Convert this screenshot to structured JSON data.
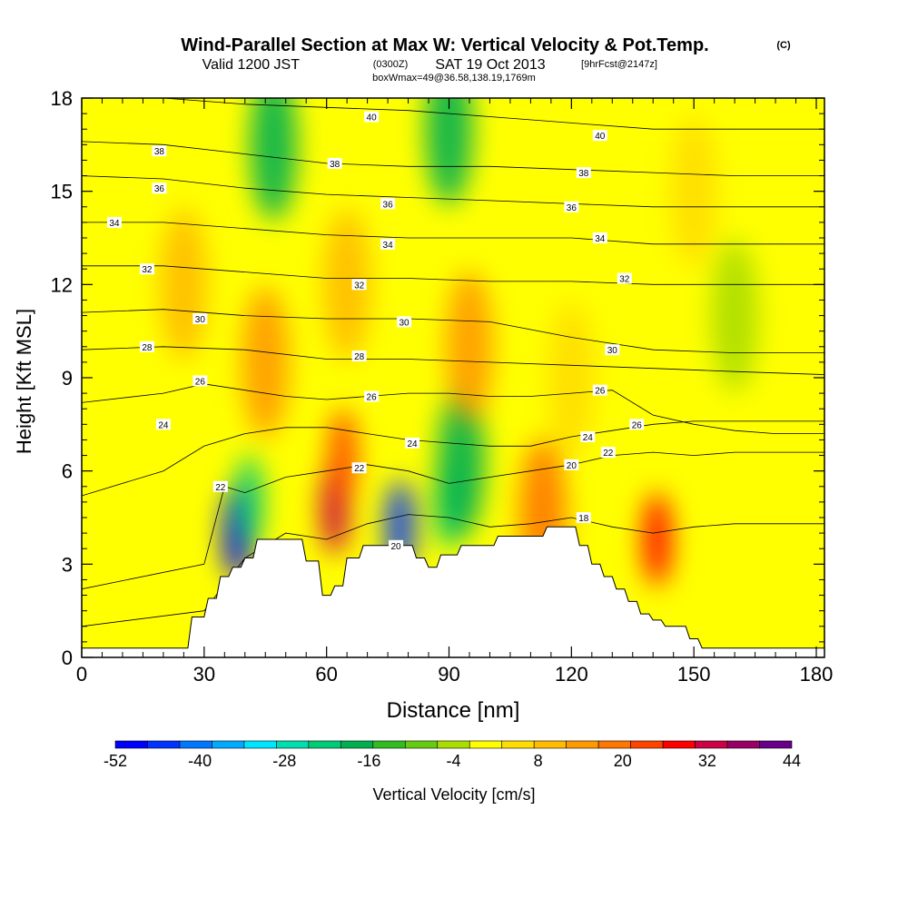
{
  "header": {
    "title": "Wind-Parallel Section at Max W: Vertical Velocity & Pot.Temp.",
    "copyright": "(C)",
    "valid_prefix": "Valid 1200 JST",
    "valid_utc": "(0300Z)",
    "valid_date": "SAT 19 Oct 2013",
    "forecast": "[9hrFcst@2147z]",
    "box_info": "boxWmax=49@36.58,138.19,1769m"
  },
  "chart_data": {
    "type": "heatmap",
    "xlabel": "Distance [nm]",
    "ylabel": "Height [Kft MSL]",
    "xlim": [
      0,
      182
    ],
    "ylim": [
      0,
      18
    ],
    "x_ticks": [
      "0",
      "30",
      "60",
      "90",
      "120",
      "150",
      "180"
    ],
    "y_ticks": [
      "0",
      "3",
      "6",
      "9",
      "12",
      "15",
      "18"
    ],
    "terrain": {
      "x": [
        0,
        26,
        27,
        30,
        31,
        33,
        34,
        36,
        37,
        39,
        40,
        42,
        43,
        54,
        55,
        58,
        59,
        61,
        62,
        64,
        65,
        68,
        69,
        81,
        82,
        84,
        85,
        87,
        88,
        92,
        93,
        101,
        102,
        113,
        114,
        121,
        122,
        124,
        125,
        127,
        128,
        130,
        131,
        133,
        134,
        136,
        137,
        139,
        140,
        142,
        143,
        148,
        149,
        151,
        152,
        182
      ],
      "height_kft": [
        0.3,
        0.3,
        1.3,
        1.3,
        1.9,
        1.9,
        2.6,
        2.6,
        2.9,
        2.9,
        3.2,
        3.2,
        3.8,
        3.8,
        3.1,
        3.1,
        2.0,
        2.0,
        2.3,
        2.3,
        3.2,
        3.2,
        3.6,
        3.6,
        3.2,
        3.2,
        2.9,
        2.9,
        3.3,
        3.3,
        3.6,
        3.6,
        3.9,
        3.9,
        4.2,
        4.2,
        3.6,
        3.6,
        3.0,
        3.0,
        2.6,
        2.6,
        2.2,
        2.2,
        1.8,
        1.8,
        1.4,
        1.4,
        1.2,
        1.2,
        1.0,
        1.0,
        0.6,
        0.6,
        0.3,
        0.3
      ]
    },
    "colorbar": {
      "label": "Vertical Velocity [cm/s]",
      "tick_labels": [
        "-52",
        "-40",
        "-28",
        "-16",
        "-4",
        "8",
        "20",
        "32",
        "44"
      ],
      "range": [
        -52,
        44
      ],
      "colors": [
        "#0000ff",
        "#0033ff",
        "#0077ff",
        "#00aaff",
        "#00e5ff",
        "#00ddb0",
        "#00cc77",
        "#00b050",
        "#33bb22",
        "#66cc11",
        "#aadd00",
        "#ffff00",
        "#ffdd00",
        "#ffbb00",
        "#ff9900",
        "#ff7700",
        "#ff4400",
        "#ff0000",
        "#cc0044",
        "#990066",
        "#660088"
      ]
    },
    "isentropes": [
      {
        "level": 20,
        "x": [
          0,
          30,
          40,
          50,
          60,
          70,
          80,
          90,
          100,
          110,
          120,
          130,
          140,
          150,
          160,
          170,
          182
        ],
        "height_kft": [
          1.0,
          1.5,
          3.2,
          4.0,
          3.8,
          4.3,
          4.6,
          4.5,
          4.2,
          4.3,
          4.5,
          4.2,
          4.0,
          4.2,
          4.3,
          4.3,
          4.3
        ]
      },
      {
        "level": 22,
        "x": [
          0,
          30,
          35,
          40,
          50,
          60,
          70,
          80,
          90,
          100,
          110,
          120,
          130,
          140,
          150,
          160,
          170,
          182
        ],
        "height_kft": [
          2.2,
          3.0,
          5.5,
          5.3,
          5.8,
          6.0,
          6.2,
          6.0,
          5.6,
          5.8,
          6.0,
          6.2,
          6.5,
          6.6,
          6.5,
          6.6,
          6.6,
          6.6
        ]
      },
      {
        "level": 24,
        "x": [
          0,
          20,
          30,
          40,
          50,
          60,
          70,
          80,
          90,
          100,
          110,
          120,
          130,
          140,
          150,
          160,
          170,
          182
        ],
        "height_kft": [
          5.2,
          6.0,
          6.8,
          7.2,
          7.4,
          7.4,
          7.2,
          7.0,
          6.9,
          6.8,
          6.8,
          7.1,
          7.3,
          7.5,
          7.6,
          7.6,
          7.6,
          7.6
        ]
      },
      {
        "level": 26,
        "x": [
          0,
          20,
          30,
          40,
          50,
          60,
          70,
          80,
          90,
          100,
          110,
          120,
          130,
          140,
          150,
          160,
          170,
          182
        ],
        "height_kft": [
          8.2,
          8.5,
          8.8,
          8.6,
          8.4,
          8.3,
          8.4,
          8.5,
          8.5,
          8.4,
          8.4,
          8.5,
          8.6,
          7.8,
          7.5,
          7.3,
          7.2,
          7.2
        ]
      },
      {
        "level": 28,
        "x": [
          0,
          20,
          40,
          60,
          80,
          100,
          120,
          140,
          160,
          182
        ],
        "height_kft": [
          9.9,
          10.0,
          9.9,
          9.6,
          9.6,
          9.5,
          9.4,
          9.3,
          9.2,
          9.1
        ]
      },
      {
        "level": 30,
        "x": [
          0,
          20,
          40,
          60,
          80,
          100,
          120,
          140,
          160,
          182
        ],
        "height_kft": [
          11.1,
          11.2,
          11.0,
          10.9,
          10.9,
          10.8,
          10.3,
          9.9,
          9.8,
          9.8
        ]
      },
      {
        "level": 32,
        "x": [
          0,
          20,
          40,
          60,
          80,
          100,
          120,
          140,
          160,
          182
        ],
        "height_kft": [
          12.6,
          12.6,
          12.4,
          12.2,
          12.2,
          12.1,
          12.1,
          12.0,
          12.0,
          12.0
        ]
      },
      {
        "level": 34,
        "x": [
          0,
          20,
          40,
          60,
          80,
          100,
          120,
          140,
          160,
          182
        ],
        "height_kft": [
          14.0,
          14.0,
          13.8,
          13.6,
          13.5,
          13.5,
          13.5,
          13.3,
          13.3,
          13.3
        ]
      },
      {
        "level": 36,
        "x": [
          0,
          20,
          40,
          60,
          80,
          100,
          120,
          140,
          160,
          182
        ],
        "height_kft": [
          15.5,
          15.4,
          15.1,
          14.9,
          14.8,
          14.7,
          14.6,
          14.5,
          14.5,
          14.5
        ]
      },
      {
        "level": 38,
        "x": [
          0,
          20,
          40,
          60,
          80,
          100,
          120,
          140,
          160,
          182
        ],
        "height_kft": [
          16.6,
          16.5,
          16.2,
          15.9,
          15.8,
          15.8,
          15.7,
          15.6,
          15.5,
          15.5
        ]
      },
      {
        "level": 40,
        "x": [
          0,
          20,
          40,
          60,
          80,
          100,
          120,
          140,
          160,
          182
        ],
        "height_kft": [
          18.2,
          18.0,
          17.8,
          17.7,
          17.6,
          17.4,
          17.2,
          17.0,
          17.0,
          17.0
        ]
      }
    ],
    "contour_labels": [
      {
        "text": "40",
        "x": 71,
        "y": 17.4
      },
      {
        "text": "40",
        "x": 127,
        "y": 16.8
      },
      {
        "text": "38",
        "x": 19,
        "y": 16.3
      },
      {
        "text": "38",
        "x": 62,
        "y": 15.9
      },
      {
        "text": "38",
        "x": 123,
        "y": 15.6
      },
      {
        "text": "36",
        "x": 19,
        "y": 15.1
      },
      {
        "text": "36",
        "x": 75,
        "y": 14.6
      },
      {
        "text": "36",
        "x": 120,
        "y": 14.5
      },
      {
        "text": "34",
        "x": 8,
        "y": 14.0
      },
      {
        "text": "34",
        "x": 75,
        "y": 13.3
      },
      {
        "text": "34",
        "x": 127,
        "y": 13.5
      },
      {
        "text": "32",
        "x": 16,
        "y": 12.5
      },
      {
        "text": "32",
        "x": 68,
        "y": 12.0
      },
      {
        "text": "32",
        "x": 133,
        "y": 12.2
      },
      {
        "text": "30",
        "x": 29,
        "y": 10.9
      },
      {
        "text": "30",
        "x": 79,
        "y": 10.8
      },
      {
        "text": "30",
        "x": 130,
        "y": 9.9
      },
      {
        "text": "28",
        "x": 16,
        "y": 10.0
      },
      {
        "text": "28",
        "x": 68,
        "y": 9.7
      },
      {
        "text": "26",
        "x": 29,
        "y": 8.9
      },
      {
        "text": "26",
        "x": 71,
        "y": 8.4
      },
      {
        "text": "26",
        "x": 127,
        "y": 8.6
      },
      {
        "text": "26",
        "x": 136,
        "y": 7.5
      },
      {
        "text": "24",
        "x": 20,
        "y": 7.5
      },
      {
        "text": "24",
        "x": 81,
        "y": 6.9
      },
      {
        "text": "24",
        "x": 124,
        "y": 7.1
      },
      {
        "text": "22",
        "x": 34,
        "y": 5.5
      },
      {
        "text": "22",
        "x": 68,
        "y": 6.1
      },
      {
        "text": "22",
        "x": 129,
        "y": 6.6
      },
      {
        "text": "20",
        "x": 77,
        "y": 3.6
      },
      {
        "text": "20",
        "x": 120,
        "y": 6.2
      },
      {
        "text": "18",
        "x": 123,
        "y": 4.5
      }
    ],
    "velocity_features": [
      {
        "x": 38,
        "y": 4.0,
        "value": -48
      },
      {
        "x": 41,
        "y": 5.0,
        "value": -22
      },
      {
        "x": 62,
        "y": 4.8,
        "value": 32
      },
      {
        "x": 64,
        "y": 6.5,
        "value": 24
      },
      {
        "x": 78,
        "y": 4.2,
        "value": -46
      },
      {
        "x": 90,
        "y": 5.0,
        "value": -24
      },
      {
        "x": 93,
        "y": 6.3,
        "value": -18
      },
      {
        "x": 141,
        "y": 3.8,
        "value": 26
      },
      {
        "x": 113,
        "y": 4.6,
        "value": 18
      },
      {
        "x": 47,
        "y": 16.5,
        "value": -20
      },
      {
        "x": 90,
        "y": 17.0,
        "value": -16
      },
      {
        "x": 160,
        "y": 11.0,
        "value": -6
      },
      {
        "x": 45,
        "y": 9.5,
        "value": 14
      },
      {
        "x": 65,
        "y": 12.0,
        "value": 10
      },
      {
        "x": 95,
        "y": 10.0,
        "value": 12
      },
      {
        "x": 25,
        "y": 12.0,
        "value": 8
      },
      {
        "x": 120,
        "y": 9.0,
        "value": 6
      },
      {
        "x": 150,
        "y": 15.0,
        "value": 6
      }
    ]
  }
}
